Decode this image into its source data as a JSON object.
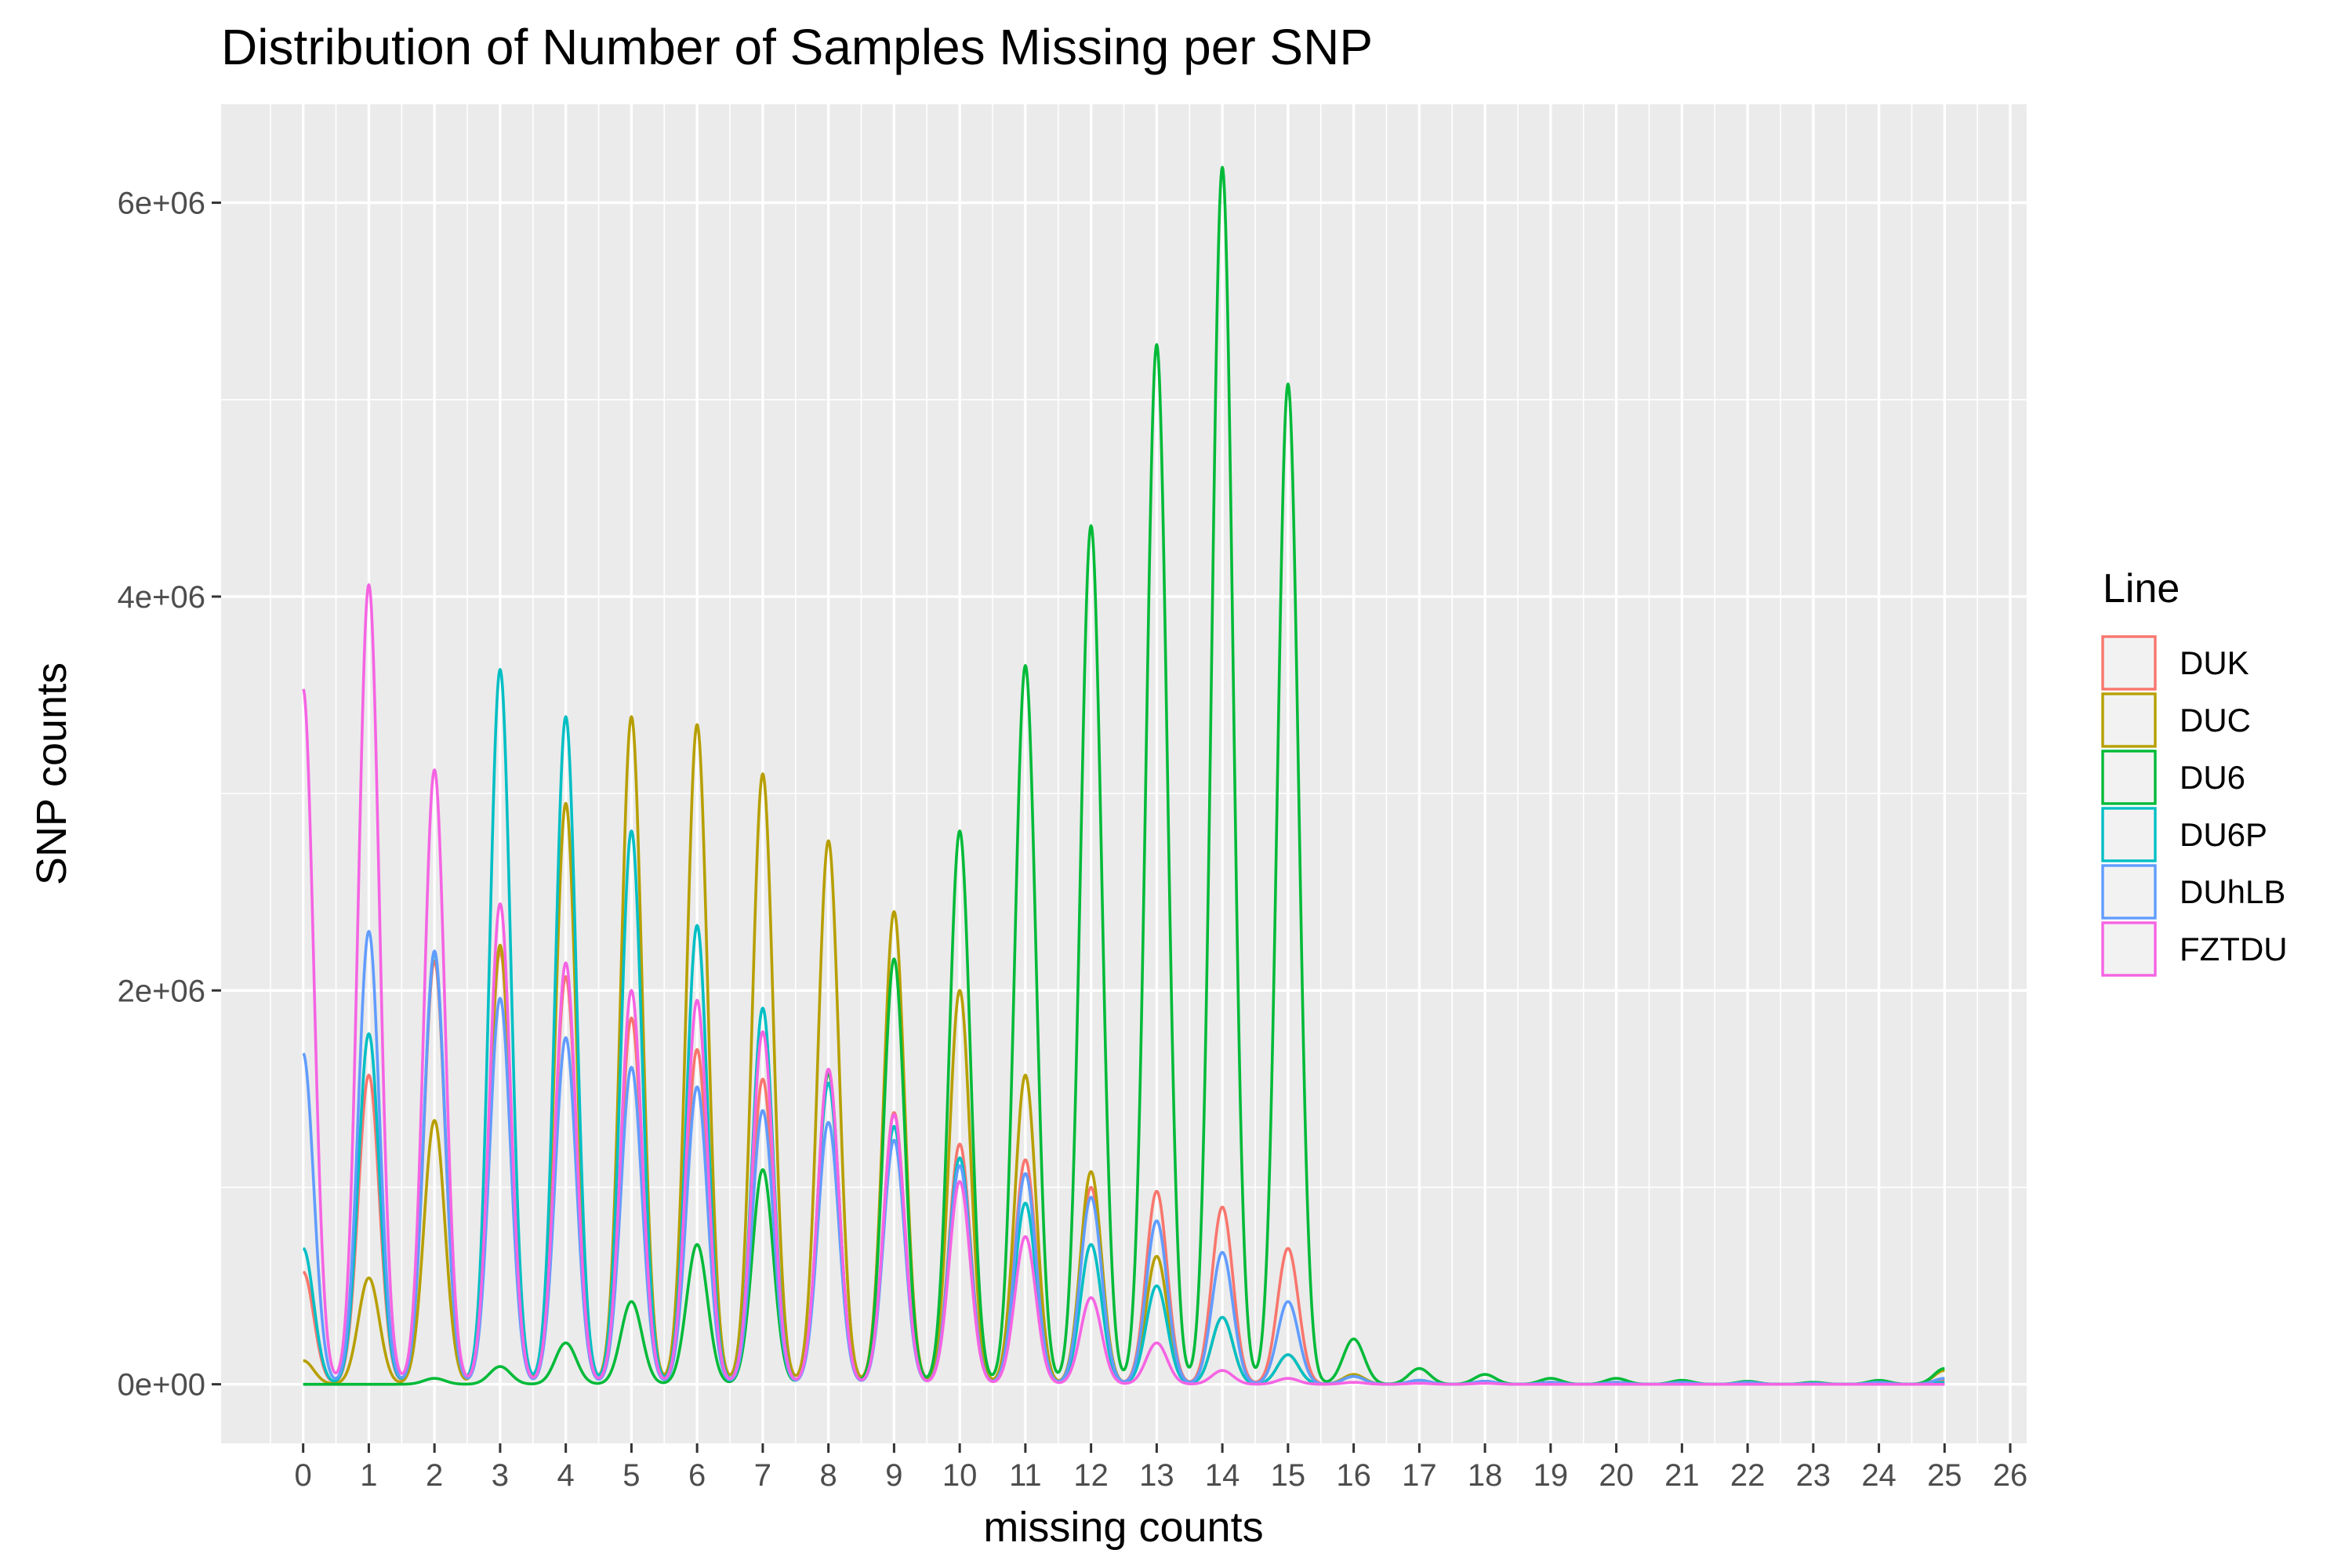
{
  "chart_data": {
    "type": "line",
    "title": "Distribution of Number of Samples Missing per SNP",
    "xlabel": "missing counts",
    "ylabel": "SNP counts",
    "x_ticks": [
      "0",
      "1",
      "2",
      "3",
      "4",
      "5",
      "6",
      "7",
      "8",
      "9",
      "10",
      "11",
      "12",
      "13",
      "14",
      "15",
      "16",
      "17",
      "18",
      "19",
      "20",
      "21",
      "22",
      "23",
      "24",
      "25",
      "26"
    ],
    "y_ticks": [
      {
        "value": 0,
        "label": "0e+00"
      },
      {
        "value": 2000000,
        "label": "2e+06"
      },
      {
        "value": 4000000,
        "label": "4e+06"
      },
      {
        "value": 6000000,
        "label": "6e+06"
      }
    ],
    "xlim": [
      -1.25,
      26.25
    ],
    "ylim": [
      -300000,
      6500000
    ],
    "grid": true,
    "legend": {
      "title": "Line",
      "position": "right"
    },
    "series": [
      {
        "name": "DUK",
        "color": "#F8766D",
        "values": [
          570000,
          1570000,
          2150000,
          2200000,
          2070000,
          1860000,
          1700000,
          1550000,
          1600000,
          1380000,
          1220000,
          1140000,
          1000000,
          980000,
          900000,
          690000,
          40000,
          20000,
          15000,
          10000,
          10000,
          10000,
          10000,
          5000,
          10000,
          20000
        ]
      },
      {
        "name": "DUC",
        "color": "#B79F00",
        "values": [
          120000,
          540000,
          1340000,
          2230000,
          2950000,
          3390000,
          3350000,
          3100000,
          2760000,
          2400000,
          2000000,
          1570000,
          1080000,
          650000,
          340000,
          150000,
          50000,
          20000,
          10000,
          10000,
          10000,
          5000,
          5000,
          5000,
          10000,
          70000
        ]
      },
      {
        "name": "DU6",
        "color": "#00BA38",
        "values": [
          0,
          0,
          30000,
          90000,
          210000,
          420000,
          710000,
          1090000,
          1580000,
          2160000,
          2810000,
          3650000,
          4360000,
          5280000,
          6180000,
          5080000,
          230000,
          80000,
          50000,
          30000,
          30000,
          20000,
          15000,
          10000,
          20000,
          80000
        ]
      },
      {
        "name": "DU6P",
        "color": "#00BFC4",
        "values": [
          690000,
          1780000,
          2190000,
          3630000,
          3390000,
          2810000,
          2330000,
          1910000,
          1530000,
          1310000,
          1150000,
          920000,
          710000,
          500000,
          340000,
          150000,
          40000,
          20000,
          15000,
          10000,
          10000,
          10000,
          5000,
          5000,
          10000,
          10000
        ]
      },
      {
        "name": "DUhLB",
        "color": "#619CFF",
        "values": [
          1680000,
          2300000,
          2200000,
          1960000,
          1760000,
          1610000,
          1510000,
          1390000,
          1330000,
          1240000,
          1110000,
          1070000,
          950000,
          830000,
          670000,
          420000,
          40000,
          20000,
          15000,
          10000,
          10000,
          10000,
          10000,
          5000,
          10000,
          30000
        ]
      },
      {
        "name": "FZTDU",
        "color": "#F564E3",
        "values": [
          3530000,
          4060000,
          3120000,
          2440000,
          2140000,
          2000000,
          1950000,
          1790000,
          1600000,
          1370000,
          1030000,
          750000,
          440000,
          210000,
          70000,
          30000,
          10000,
          5000,
          5000,
          0,
          0,
          0,
          0,
          0,
          0,
          0
        ]
      }
    ]
  }
}
